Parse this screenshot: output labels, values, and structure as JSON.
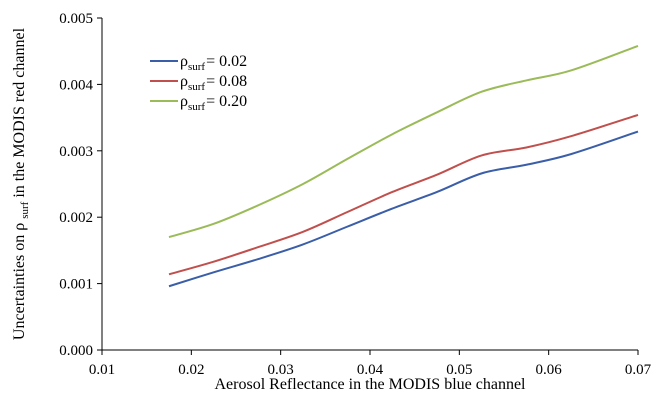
{
  "chart_data": {
    "type": "line",
    "title": "",
    "xlabel": "Aerosol Reflectance in the MODIS blue channel",
    "ylabel": {
      "before": "Uncertainties on ρ",
      "sub": "surf",
      "after": " in the MODIS red channel"
    },
    "xlim": [
      0.01,
      0.07
    ],
    "ylim": [
      0,
      0.005
    ],
    "xticks": [
      "0.01",
      "0.02",
      "0.03",
      "0.04",
      "0.05",
      "0.06",
      "0.07"
    ],
    "yticks": [
      "0.000",
      "0.001",
      "0.002",
      "0.003",
      "0.004",
      "0.005"
    ],
    "grid": false,
    "legend_position": "top-left",
    "series": [
      {
        "name": {
          "symbol": "ρ",
          "sub": "surf",
          "value": "= 0.02"
        },
        "color": "#3b5ea8",
        "x": [
          0.0175,
          0.0225,
          0.0275,
          0.0325,
          0.0375,
          0.0425,
          0.0475,
          0.0525,
          0.0575,
          0.0625,
          0.07
        ],
        "y": [
          0.00096,
          0.00117,
          0.00137,
          0.00159,
          0.00186,
          0.00213,
          0.00238,
          0.00266,
          0.00279,
          0.00295,
          0.00329
        ]
      },
      {
        "name": {
          "symbol": "ρ",
          "sub": "surf",
          "value": "= 0.08"
        },
        "color": "#c0504d",
        "x": [
          0.0175,
          0.0225,
          0.0275,
          0.0325,
          0.0375,
          0.0425,
          0.0475,
          0.0525,
          0.0575,
          0.0625,
          0.07
        ],
        "y": [
          0.00114,
          0.00133,
          0.00155,
          0.00178,
          0.00208,
          0.00238,
          0.00264,
          0.00293,
          0.00305,
          0.00322,
          0.00354
        ]
      },
      {
        "name": {
          "symbol": "ρ",
          "sub": "surf",
          "value": "= 0.20"
        },
        "color": "#9bbb59",
        "x": [
          0.0175,
          0.0225,
          0.0275,
          0.0325,
          0.0375,
          0.0425,
          0.0475,
          0.0525,
          0.0575,
          0.0625,
          0.07
        ],
        "y": [
          0.0017,
          0.0019,
          0.00218,
          0.0025,
          0.00288,
          0.00325,
          0.00358,
          0.00389,
          0.00406,
          0.00421,
          0.00458
        ]
      }
    ]
  }
}
